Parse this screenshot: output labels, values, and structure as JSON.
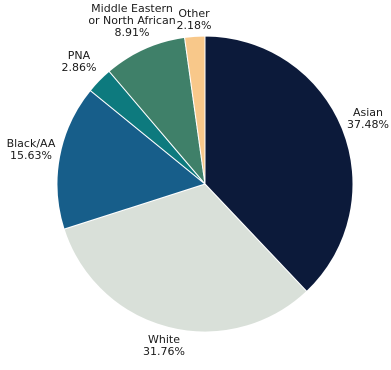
{
  "chart_data": {
    "type": "pie",
    "title": "",
    "start_angle_deg": 0,
    "direction": "clockwise",
    "slices": [
      {
        "name": "Asian",
        "value": 37.48,
        "value_label": "37.48%",
        "color": "#0c1a3a"
      },
      {
        "name": "White",
        "value": 31.76,
        "value_label": "31.76%",
        "color": "#d9e0d9"
      },
      {
        "name": "Black/AA",
        "value": 15.63,
        "value_label": "15.63%",
        "color": "#175e8a"
      },
      {
        "name": "PNA",
        "value": 2.86,
        "value_label": "2.86%",
        "color": "#0d7a7e"
      },
      {
        "name": "Middle Eastern or North African",
        "name_lines": [
          "Middle Eastern",
          "or North African"
        ],
        "value": 8.91,
        "value_label": "8.91%",
        "color": "#3f8069"
      },
      {
        "name": "Other",
        "value": 2.18,
        "value_label": "2.18%",
        "color": "#f8c88a"
      }
    ]
  }
}
